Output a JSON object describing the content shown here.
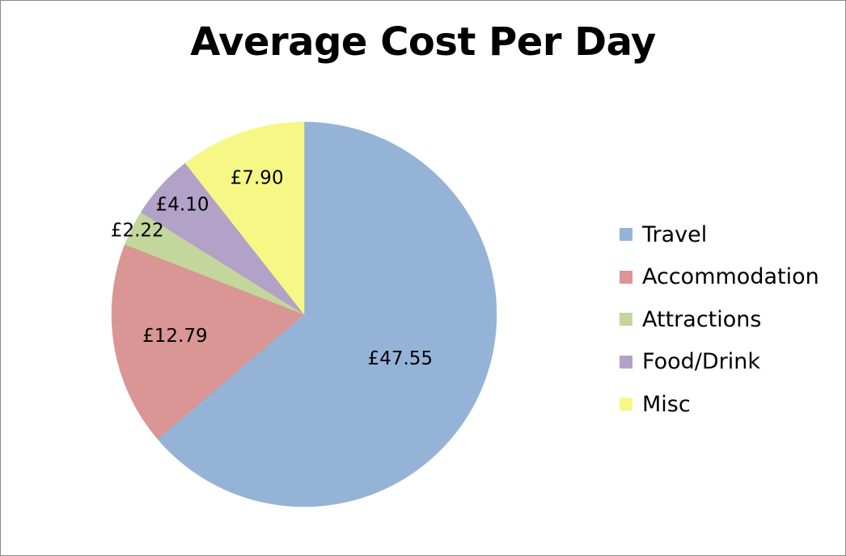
{
  "chart_data": {
    "type": "pie",
    "title": "Average Cost Per Day",
    "categories": [
      "Travel",
      "Accommodation",
      "Attractions",
      "Food/Drink",
      "Misc"
    ],
    "values": [
      47.55,
      12.79,
      2.22,
      4.1,
      7.9
    ],
    "data_labels": [
      "£47.55",
      "£12.79",
      "£2.22",
      "£4.10",
      "£7.90"
    ],
    "colors": [
      "#95b3d7",
      "#d99694",
      "#c3d69b",
      "#b2a2c7",
      "#f7f786"
    ],
    "legend_position": "right",
    "start_angle": "12 o'clock",
    "direction": "clockwise"
  }
}
